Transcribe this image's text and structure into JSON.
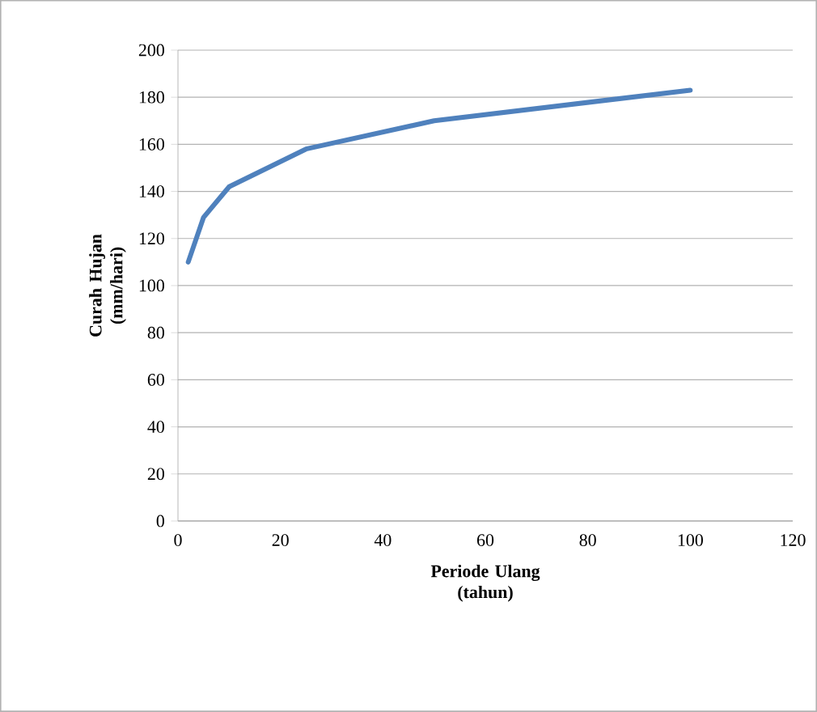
{
  "chart_data": {
    "type": "line",
    "xlabel": "Periode Ulang (tahun)",
    "ylabel": "Curah Hujan (mm/hari)",
    "x": [
      2,
      5,
      10,
      25,
      50,
      100
    ],
    "series": [
      {
        "color": "#4f81bd",
        "values": [
          110,
          129,
          142,
          158,
          170,
          183
        ]
      }
    ],
    "xlim": [
      0,
      120
    ],
    "xticks": [
      0,
      20,
      40,
      60,
      80,
      100,
      120
    ],
    "ylim": [
      0,
      200
    ],
    "yticks": [
      0,
      20,
      40,
      60,
      80,
      100,
      120,
      140,
      160,
      180,
      200
    ],
    "grid": "y",
    "marker": "none",
    "line_style": "solid"
  }
}
